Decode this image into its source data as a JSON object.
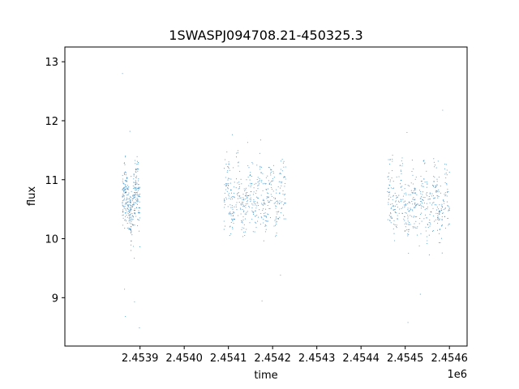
{
  "chart_data": {
    "type": "scatter",
    "title": "1SWASPJ094708.21-450325.3",
    "xlabel": "time",
    "ylabel": "flux",
    "x_offset_label": "1e6",
    "xlim": [
      2.45373,
      2.45464
    ],
    "ylim": [
      8.18,
      13.25
    ],
    "x_ticks": [
      {
        "value": 2.4539,
        "label": "2.4539"
      },
      {
        "value": 2.454,
        "label": "2.4540"
      },
      {
        "value": 2.4541,
        "label": "2.4541"
      },
      {
        "value": 2.4542,
        "label": "2.4542"
      },
      {
        "value": 2.4543,
        "label": "2.4543"
      },
      {
        "value": 2.4544,
        "label": "2.4544"
      },
      {
        "value": 2.4545,
        "label": "2.4545"
      },
      {
        "value": 2.4546,
        "label": "2.4546"
      }
    ],
    "y_ticks": [
      {
        "value": 9,
        "label": "9"
      },
      {
        "value": 10,
        "label": "10"
      },
      {
        "value": 11,
        "label": "11"
      },
      {
        "value": 12,
        "label": "12"
      },
      {
        "value": 13,
        "label": "13"
      }
    ],
    "grid": false,
    "marker_color": "#1f77b4",
    "segments": [
      {
        "x_start": 2.45386,
        "x_end": 2.4539,
        "y_center": 10.6,
        "y_spread": 0.5
      },
      {
        "x_start": 2.45409,
        "x_end": 2.45423,
        "y_center": 10.7,
        "y_spread": 0.55
      },
      {
        "x_start": 2.45446,
        "x_end": 2.4546,
        "y_center": 10.6,
        "y_spread": 0.6
      }
    ]
  }
}
